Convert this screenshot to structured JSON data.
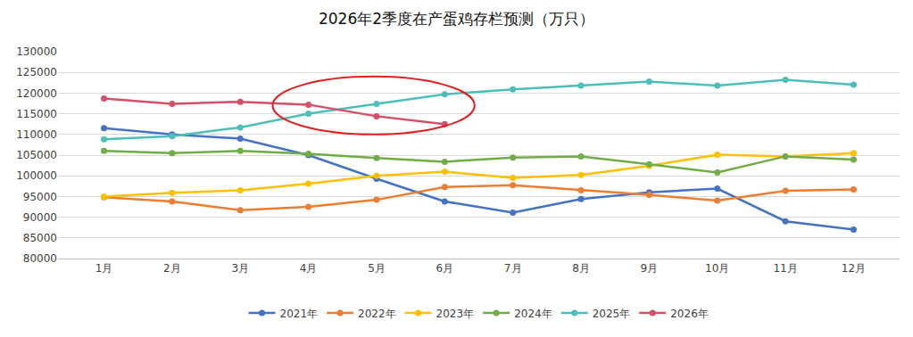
{
  "chart_data": {
    "type": "line",
    "title": "2026年2季度在产蛋鸡存栏预测（万只）",
    "categories": [
      "1月",
      "2月",
      "3月",
      "4月",
      "5月",
      "6月",
      "7月",
      "8月",
      "9月",
      "10月",
      "11月",
      "12月"
    ],
    "series": [
      {
        "name": "2021年",
        "color": "#4472c4",
        "values": [
          111500,
          110000,
          109000,
          105000,
          99300,
          93800,
          91100,
          94400,
          96000,
          96900,
          89000,
          87000
        ]
      },
      {
        "name": "2022年",
        "color": "#ed7d31",
        "values": [
          94800,
          93800,
          91700,
          92500,
          94200,
          97300,
          97700,
          96500,
          95400,
          94000,
          96400,
          96700
        ]
      },
      {
        "name": "2023年",
        "color": "#ffc000",
        "values": [
          95000,
          95900,
          96500,
          98100,
          100000,
          101000,
          99500,
          100200,
          102400,
          105100,
          104700,
          105500
        ]
      },
      {
        "name": "2024年",
        "color": "#70ad47",
        "values": [
          106000,
          105500,
          106000,
          105300,
          104300,
          103400,
          104400,
          104700,
          102800,
          100800,
          104700,
          103900
        ]
      },
      {
        "name": "2025年",
        "color": "#4dbfb9",
        "values": [
          108800,
          109600,
          111700,
          115000,
          117400,
          119700,
          120900,
          121800,
          122800,
          121800,
          123200,
          122000
        ]
      },
      {
        "name": "2026年",
        "color": "#d3506a",
        "values": [
          118700,
          117400,
          117900,
          117200,
          114400,
          112500,
          null,
          null,
          null,
          null,
          null,
          null
        ]
      }
    ],
    "ylim": [
      80000,
      130000
    ],
    "yticks": [
      80000,
      85000,
      90000,
      95000,
      100000,
      105000,
      110000,
      115000,
      120000,
      125000,
      130000
    ],
    "grid": true,
    "legend": "bottom",
    "marker": "circle"
  }
}
